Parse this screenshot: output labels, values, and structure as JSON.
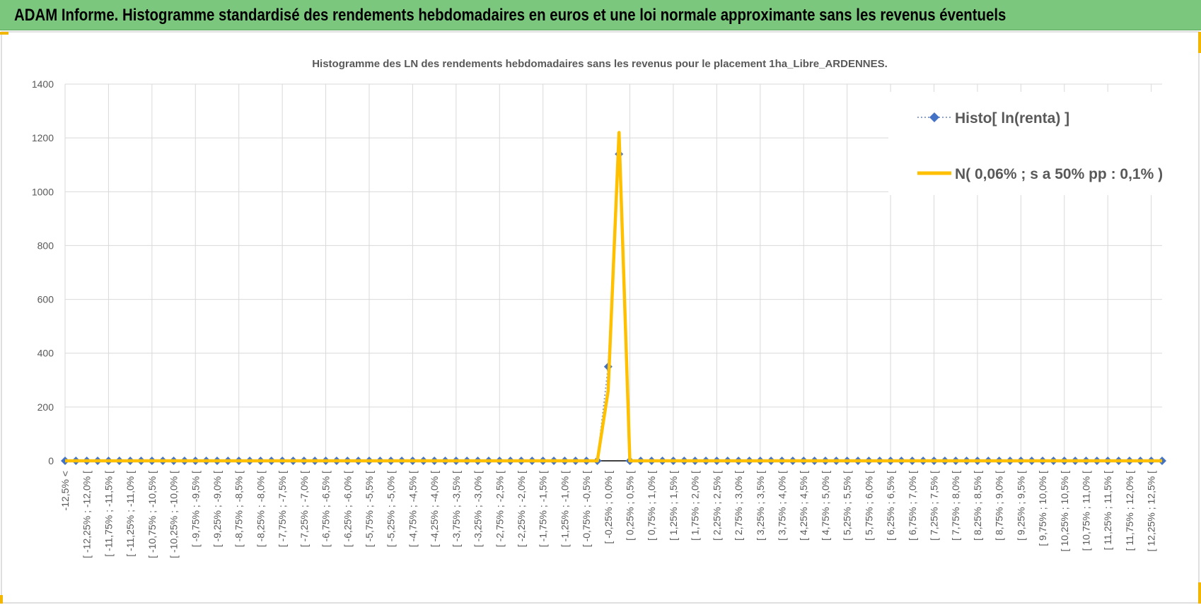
{
  "header": {
    "title": "ADAM Informe. Histogramme standardisé des rendements hebdomadaires en euros et une loi normale approximante sans les revenus éventuels"
  },
  "chart_data": {
    "type": "line",
    "title": "Histogramme  des LN des rendements  hebdomadaires sans les  revenus pour le placement 1ha_Libre_ARDENNES.",
    "xlabel": "",
    "ylabel": "",
    "ylim": [
      0,
      1400
    ],
    "yticks": [
      "0",
      "200",
      "400",
      "600",
      "800",
      "1000",
      "1200",
      "1400"
    ],
    "grid": true,
    "legend_position": "top-right",
    "x_labels_visible_every": 2,
    "x_labels": [
      "-12,5% <",
      "[ -12,25% ; -12,0% [",
      "[ -11,75% ; -11,5% [",
      "[ -11,25% ; -11,0% [",
      "[ -10,75% ; -10,5% [",
      "[ -10,25% ; -10,0% [",
      "[ -9,75% ; -9,5% [",
      "[ -9,25% ; -9,0% [",
      "[ -8,75% ; -8,5% [",
      "[ -8,25% ; -8,0% [",
      "[ -7,75% ; -7,5% [",
      "[ -7,25% ; -7,0% [",
      "[ -6,75% ; -6,5% [",
      "[ -6,25% ; -6,0% [",
      "[ -5,75% ; -5,5% [",
      "[ -5,25% ; -5,0% [",
      "[ -4,75% ; -4,5% [",
      "[ -4,25% ; -4,0% [",
      "[ -3,75% ; -3,5% [",
      "[ -3,25% ; -3,0% [",
      "[ -2,75% ; -2,5% [",
      "[ -2,25% ; -2,0% [",
      "[ -1,75% ; -1,5% [",
      "[ -1,25% ; -1,0% [",
      "[ -0,75% ; -0,5% [",
      "[ -0,25% ; 0,0% [",
      "[ 0,25% ; 0,5% [",
      "[ 0,75% ; 1,0% [",
      "[ 1,25% ; 1,5% [",
      "[ 1,75% ; 2,0% [",
      "[ 2,25% ; 2,5% [",
      "[ 2,75% ; 3,0% [",
      "[ 3,25% ; 3,5% [",
      "[ 3,75% ; 4,0% [",
      "[ 4,25% ; 4,5% [",
      "[ 4,75% ; 5,0% [",
      "[ 5,25% ; 5,5% [",
      "[ 5,75% ; 6,0% [",
      "[ 6,25% ; 6,5% [",
      "[ 6,75% ; 7,0% [",
      "[ 7,25% ; 7,5% [",
      "[ 7,75% ; 8,0% [",
      "[ 8,25% ; 8,5% [",
      "[ 8,75% ; 9,0% [",
      "[ 9,25% ; 9,5% [",
      "[ 9,75% ; 10,0% [",
      "[ 10,25% ; 10,5% [",
      "[ 10,75% ; 11,0% [",
      "[ 11,25% ; 11,5% [",
      "[ 11,75% ; 12,0% [",
      "[ 12,25% ; 12,5% ["
    ],
    "series": [
      {
        "name": "Histo[ ln(renta) ]",
        "color": "#4472c4",
        "style": "dotted-with-diamonds",
        "values": [
          0,
          0,
          0,
          0,
          0,
          0,
          0,
          0,
          0,
          0,
          0,
          0,
          0,
          0,
          0,
          0,
          0,
          0,
          0,
          0,
          0,
          0,
          0,
          0,
          0,
          0,
          0,
          0,
          0,
          0,
          0,
          0,
          0,
          0,
          0,
          0,
          0,
          0,
          0,
          0,
          0,
          0,
          0,
          0,
          0,
          0,
          0,
          0,
          0,
          0,
          350,
          1140,
          0,
          0,
          0,
          0,
          0,
          0,
          0,
          0,
          0,
          0,
          0,
          0,
          0,
          0,
          0,
          0,
          0,
          0,
          0,
          0,
          0,
          0,
          0,
          0,
          0,
          0,
          0,
          0,
          0,
          0,
          0,
          0,
          0,
          0,
          0,
          0,
          0,
          0,
          0,
          0,
          0,
          0,
          0,
          0,
          0,
          0,
          0,
          0,
          0,
          0
        ]
      },
      {
        "name": "N( 0,06% ; s a 50% pp : 0,1% )",
        "color": "#ffc000",
        "style": "solid",
        "values": [
          0,
          0,
          0,
          0,
          0,
          0,
          0,
          0,
          0,
          0,
          0,
          0,
          0,
          0,
          0,
          0,
          0,
          0,
          0,
          0,
          0,
          0,
          0,
          0,
          0,
          0,
          0,
          0,
          0,
          0,
          0,
          0,
          0,
          0,
          0,
          0,
          0,
          0,
          0,
          0,
          0,
          0,
          0,
          0,
          0,
          0,
          0,
          0,
          0,
          0,
          260,
          1220,
          0,
          0,
          0,
          0,
          0,
          0,
          0,
          0,
          0,
          0,
          0,
          0,
          0,
          0,
          0,
          0,
          0,
          0,
          0,
          0,
          0,
          0,
          0,
          0,
          0,
          0,
          0,
          0,
          0,
          0,
          0,
          0,
          0,
          0,
          0,
          0,
          0,
          0,
          0,
          0,
          0,
          0,
          0,
          0,
          0,
          0,
          0,
          0,
          0,
          0
        ]
      }
    ]
  }
}
